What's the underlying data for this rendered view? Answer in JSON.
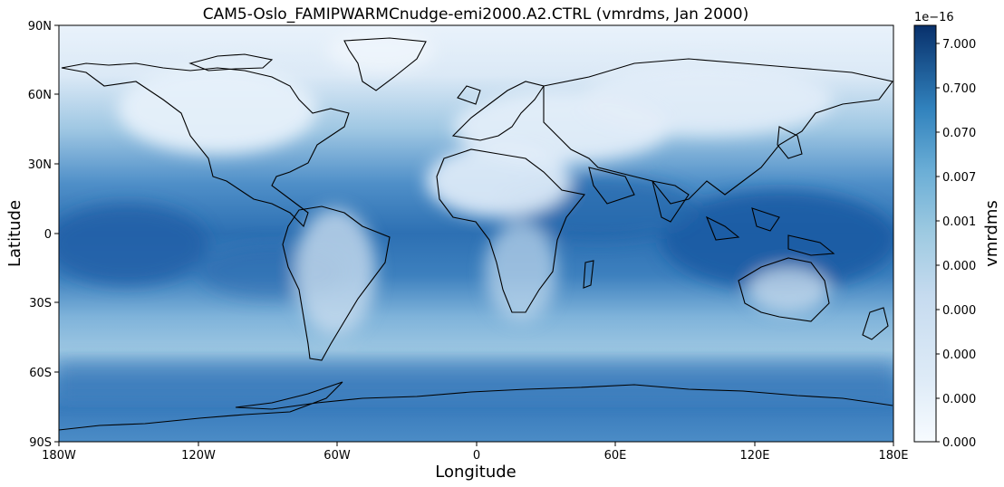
{
  "title": "CAM5-Oslo_FAMIPWARMCnudge-emi2000.A2.CTRL (vmrdms, Jan 2000)",
  "axes": {
    "xlabel": "Longitude",
    "ylabel": "Latitude",
    "xticks": [
      "180W",
      "120W",
      "60W",
      "0",
      "60E",
      "120E",
      "180E"
    ],
    "yticks": [
      "90N",
      "60N",
      "30N",
      "0",
      "30S",
      "60S",
      "90S"
    ]
  },
  "colorbar": {
    "label": "vmrdms",
    "offset_label": "1e−16",
    "ticks": [
      "7.000",
      "0.700",
      "0.070",
      "0.007",
      "0.001",
      "0.000",
      "0.000",
      "0.000",
      "0.000",
      "0.000"
    ],
    "colormap": "Blues",
    "scale": "log"
  },
  "map": {
    "projection": "PlateCarree",
    "extent_lon": [
      -180,
      180
    ],
    "extent_lat": [
      -90,
      90
    ],
    "coastlines": true,
    "field": "vmrdms",
    "time": "Jan 2000"
  },
  "colors": {
    "ocean_high": "#08519c",
    "ocean_mid": "#4a90c6",
    "land_low": "#e8f1fa",
    "coastline": "#000000"
  }
}
